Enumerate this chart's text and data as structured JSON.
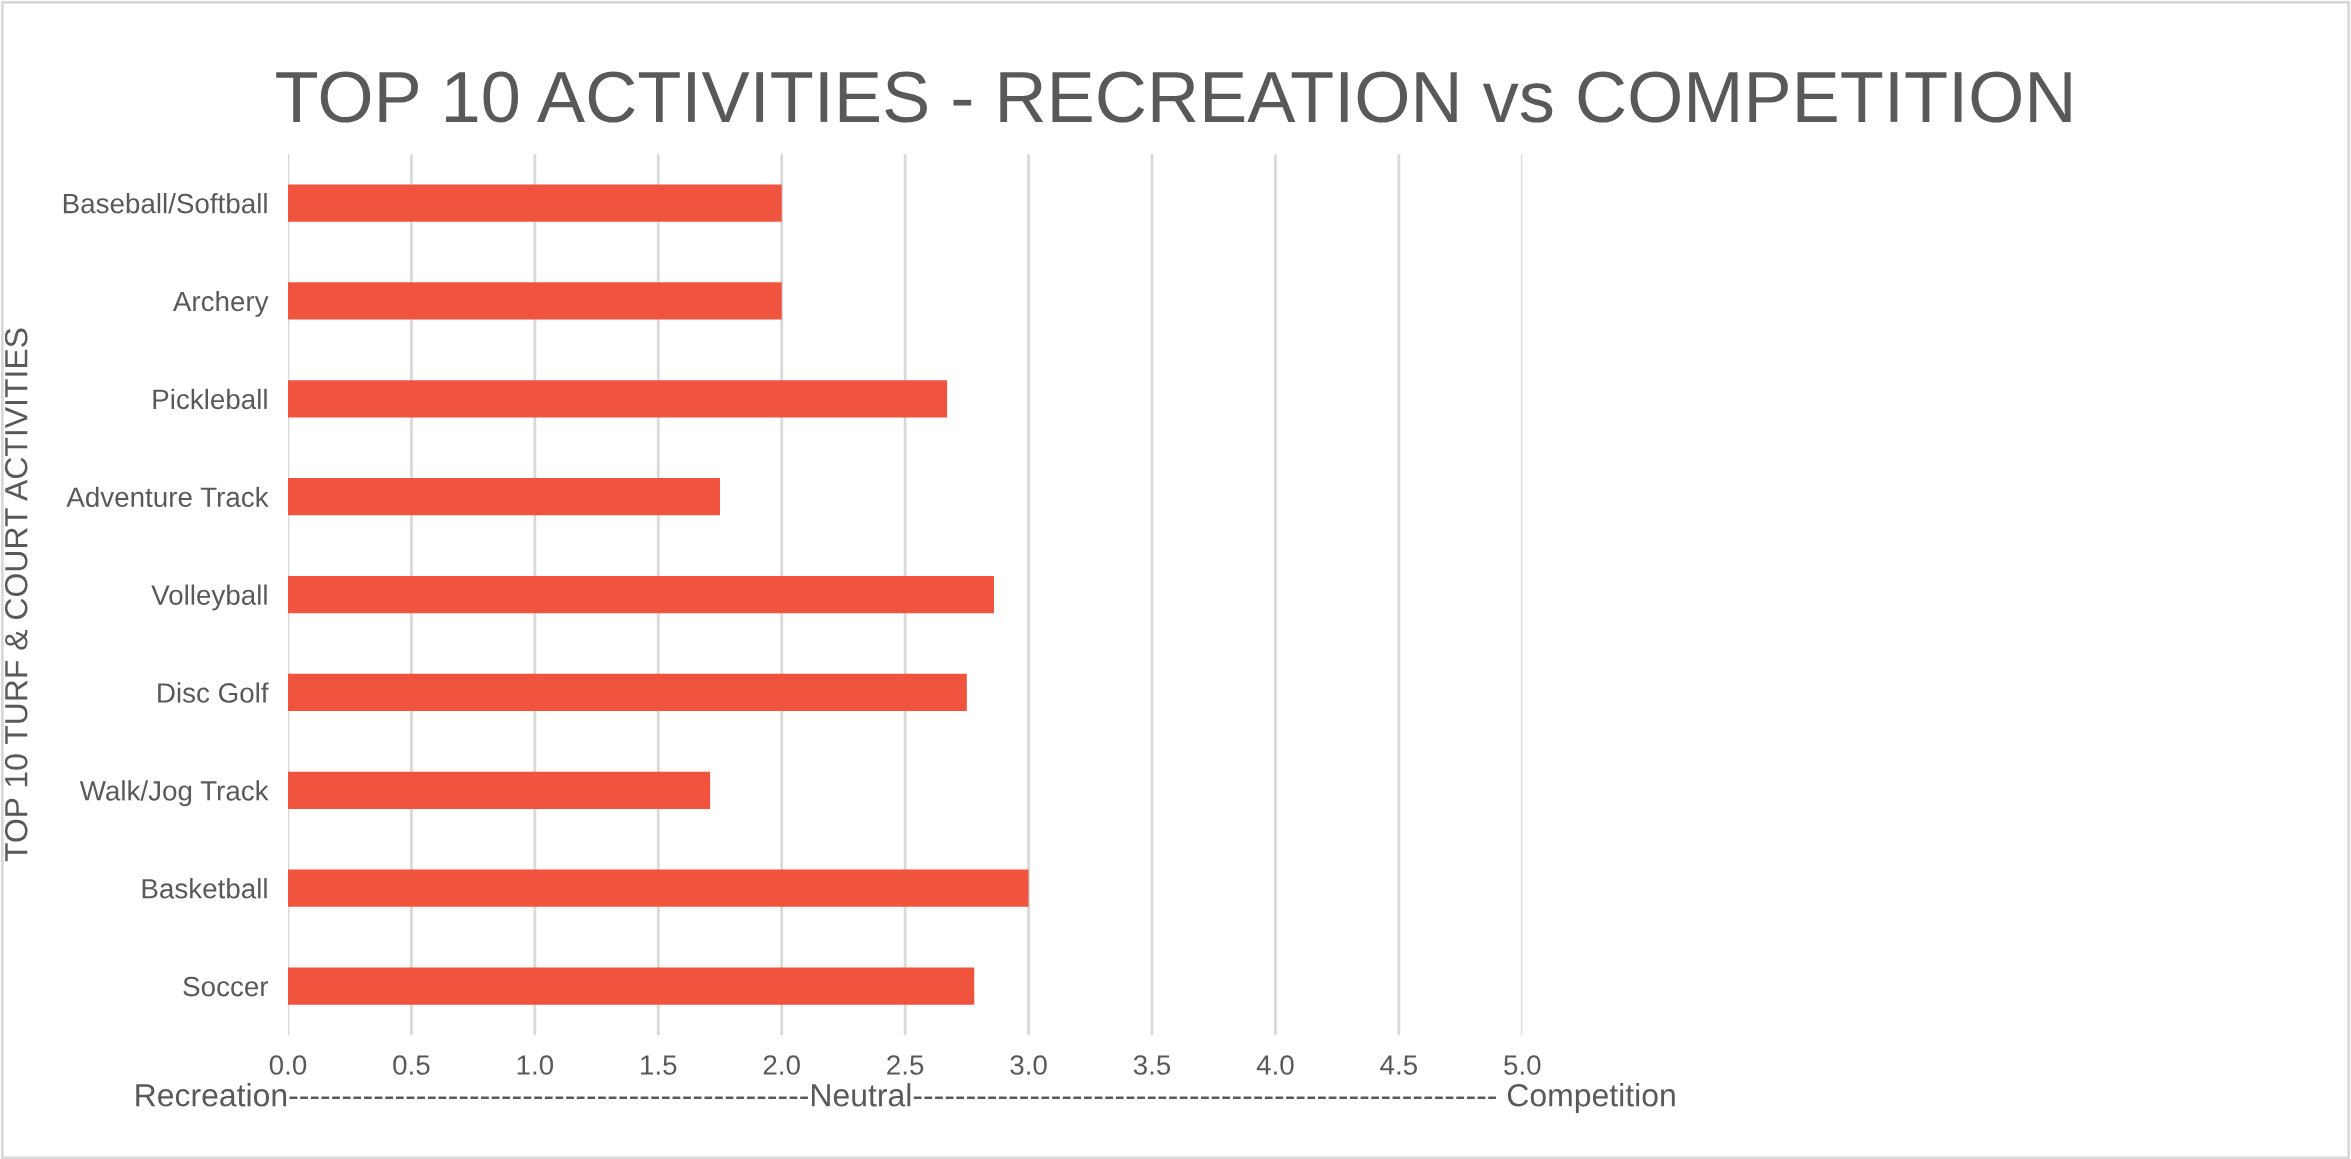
{
  "chart_data": {
    "type": "bar",
    "orientation": "horizontal",
    "title": "TOP 10 ACTIVITIES - RECREATION vs COMPETITION",
    "ylabel": "TOP 10 TURF & COURT ACTIVITIES",
    "xlabel": "Recreation-------------------------------------------------Neutral------------------------------------------------------- Competition",
    "categories": [
      "Baseball/Softball",
      "Archery",
      "Pickleball",
      "Adventure Track",
      "Volleyball",
      "Disc Golf",
      "Walk/Jog Track",
      "Basketball",
      "Soccer"
    ],
    "values": [
      2.0,
      2.0,
      2.67,
      1.75,
      2.86,
      2.75,
      1.71,
      3.0,
      2.78
    ],
    "color": "#f0543f",
    "xlim": [
      0,
      5
    ],
    "xticks": [
      {
        "value": 0,
        "label": "0.0"
      },
      0.5,
      {
        "value": 1,
        "label": "1.0"
      },
      1.5,
      {
        "value": 2,
        "label": "2.0"
      },
      2.5,
      {
        "value": 3,
        "label": "3.0"
      },
      3.5,
      {
        "value": 4,
        "label": "4.0"
      },
      4.5,
      {
        "value": 5,
        "label": "5.0"
      }
    ],
    "grid": "x"
  }
}
